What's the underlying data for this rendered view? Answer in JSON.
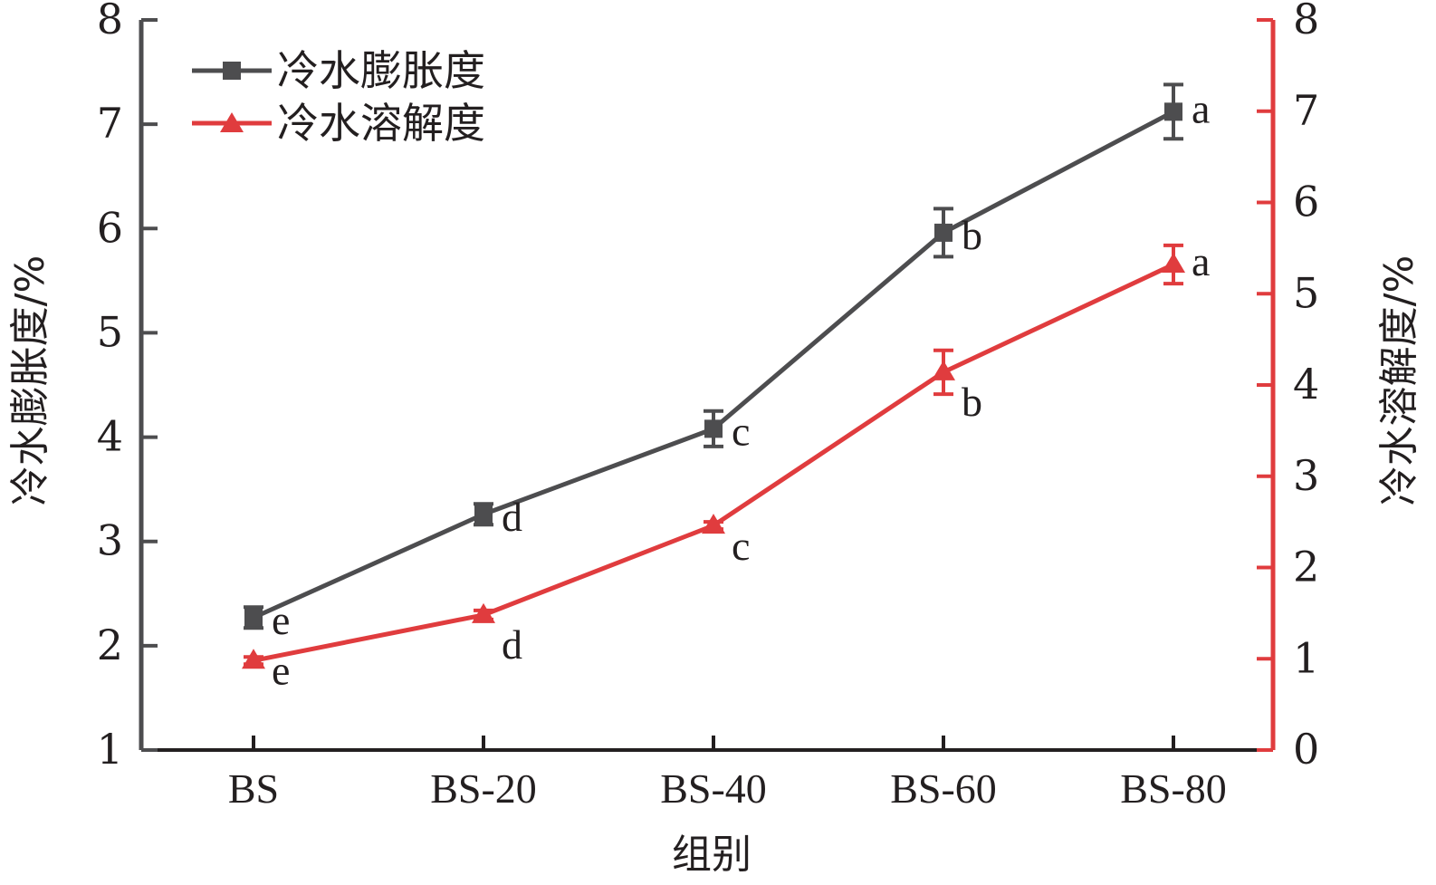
{
  "chart_data": {
    "type": "line",
    "categories": [
      "BS",
      "BS-20",
      "BS-40",
      "BS-60",
      "BS-80"
    ],
    "xlabel": "组别",
    "ylabel_left": "冷水膨胀度/%",
    "ylabel_right": "冷水溶解度/%",
    "ylim_left": [
      1,
      8
    ],
    "ylim_right": [
      0,
      8
    ],
    "yticks_left": [
      1,
      2,
      3,
      4,
      5,
      6,
      7,
      8
    ],
    "yticks_right": [
      0,
      1,
      2,
      3,
      4,
      5,
      6,
      7,
      8
    ],
    "legend_position": "top-left",
    "grid": false,
    "series": [
      {
        "name": "冷水膨胀度",
        "axis": "left",
        "marker": "square",
        "color": "#4d4d4f",
        "values": [
          2.27,
          3.26,
          4.08,
          5.96,
          7.12
        ],
        "errors": [
          0.1,
          0.1,
          0.17,
          0.23,
          0.26
        ],
        "sig": [
          "e",
          "d",
          "c",
          "b",
          "a"
        ]
      },
      {
        "name": "冷水溶解度",
        "axis": "right",
        "marker": "triangle",
        "color": "#e03c3e",
        "values": [
          0.98,
          1.48,
          2.46,
          4.14,
          5.32
        ],
        "errors": [
          0.04,
          0.05,
          0.04,
          0.24,
          0.21
        ],
        "sig": [
          "e",
          "d",
          "c",
          "b",
          "a"
        ]
      }
    ]
  }
}
